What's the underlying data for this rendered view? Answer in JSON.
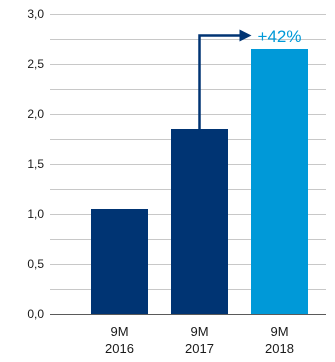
{
  "chart_data": {
    "type": "bar",
    "categories": [
      [
        "9M",
        "2016"
      ],
      [
        "9M",
        "2017"
      ],
      [
        "9M",
        "2018"
      ]
    ],
    "values": [
      1.05,
      1.85,
      2.65
    ],
    "bar_colors": [
      "#003473",
      "#003473",
      "#0099d8"
    ],
    "ylim": [
      0,
      3
    ],
    "yticks": [
      0,
      0.5,
      1,
      1.5,
      2,
      2.5,
      3
    ],
    "ytick_labels": [
      "0,0",
      "0,5",
      "1,0",
      "1,5",
      "2,0",
      "2,5",
      "3,0"
    ],
    "grid": true,
    "grid_step": 0.25,
    "grid_color": "#c8c8c8",
    "annotation": {
      "text": "+42%",
      "from_category": 1,
      "to_category": 2,
      "color": "#0099d8",
      "arrow_color": "#003473"
    }
  }
}
